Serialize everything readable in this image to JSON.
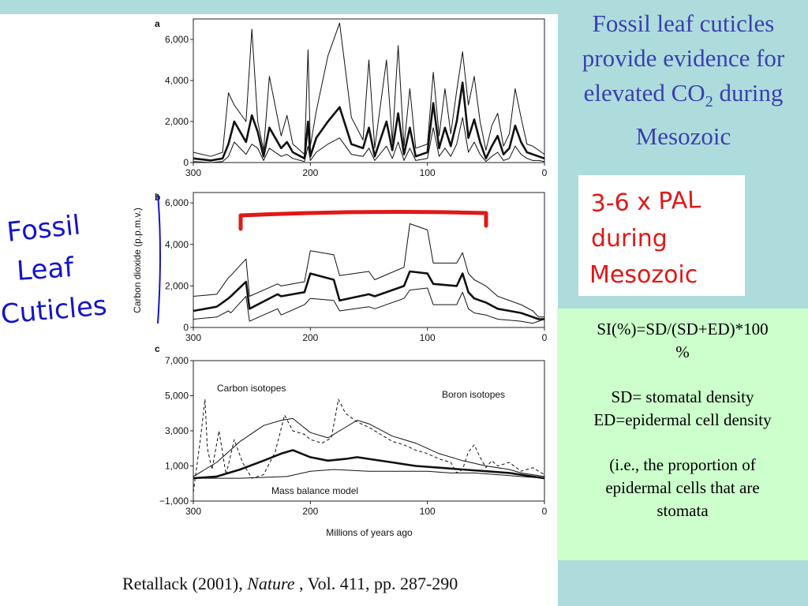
{
  "slide": {
    "title_line1": "Fossil leaf cuticles",
    "title_line2": "provide evidence for",
    "title_line3_pre": "elevated CO",
    "title_line3_sub": "2",
    "title_line3_post": " during",
    "title_line4": "Mesozoic",
    "handwritten_left": [
      "Fossil",
      "Leaf",
      "Cuticles"
    ],
    "handwritten_note": [
      "3-6 x PAL",
      "during",
      "Mesozoic"
    ],
    "si_box": {
      "formula": "SI(%)=SD/(SD+ED)*100",
      "percent": "%",
      "sd_def": "SD= stomatal density",
      "ed_def": "ED=epidermal cell density",
      "expl_1": "(i.e., the proportion of",
      "expl_2": "epidermal cells that are",
      "expl_3": "stomata"
    },
    "citation_pre": "Retallack (2001), ",
    "citation_journal": "Nature",
    "citation_post": " , Vol. 411, pp. 287-290",
    "colors": {
      "title": "#3a3fb0",
      "handwriting_blue": "#1515c8",
      "handwriting_red": "#e01818",
      "si_bg": "#ccffcc",
      "slide_bg": "#aedcdc"
    }
  },
  "chart_data": [
    {
      "panel": "a",
      "type": "line",
      "ylabel": "",
      "yticks": [
        "0",
        "2,000",
        "4,000",
        "6,000"
      ],
      "xticks": [
        "300",
        "200",
        "100",
        "0"
      ],
      "xlim": [
        300,
        0
      ],
      "ylim": [
        0,
        7000
      ],
      "series": [
        {
          "role": "mean",
          "x": [
            300,
            285,
            275,
            270,
            265,
            255,
            250,
            245,
            240,
            235,
            225,
            220,
            215,
            205,
            202,
            200,
            195,
            185,
            175,
            165,
            155,
            150,
            145,
            135,
            130,
            125,
            120,
            115,
            110,
            100,
            95,
            90,
            85,
            80,
            75,
            70,
            65,
            60,
            55,
            50,
            45,
            40,
            35,
            30,
            25,
            20,
            15,
            10,
            5,
            0
          ],
          "y": [
            200,
            100,
            200,
            900,
            2000,
            1000,
            2300,
            1500,
            300,
            1700,
            700,
            1000,
            500,
            200,
            2000,
            300,
            1200,
            2000,
            2700,
            900,
            700,
            1700,
            300,
            2000,
            600,
            2400,
            400,
            1700,
            300,
            500,
            2900,
            700,
            1700,
            800,
            2000,
            3900,
            1200,
            2100,
            1000,
            200,
            800,
            1300,
            400,
            700,
            1800,
            1000,
            500,
            400,
            300,
            200
          ]
        },
        {
          "role": "upper",
          "x": [
            300,
            285,
            275,
            270,
            265,
            255,
            250,
            245,
            240,
            235,
            225,
            220,
            215,
            205,
            202,
            200,
            195,
            185,
            175,
            165,
            155,
            150,
            145,
            135,
            130,
            125,
            120,
            115,
            110,
            100,
            95,
            90,
            85,
            80,
            75,
            70,
            65,
            60,
            55,
            50,
            45,
            40,
            35,
            30,
            25,
            20,
            15,
            10,
            5,
            0
          ],
          "y": [
            500,
            300,
            500,
            3400,
            2800,
            2000,
            6500,
            2000,
            600,
            4200,
            1300,
            2300,
            900,
            400,
            5500,
            800,
            2500,
            5200,
            6800,
            2200,
            1100,
            5000,
            700,
            5000,
            1000,
            5700,
            800,
            3600,
            700,
            900,
            4400,
            1300,
            3600,
            1400,
            3500,
            5400,
            2800,
            4200,
            2000,
            600,
            1800,
            2400,
            800,
            1400,
            3600,
            2200,
            900,
            800,
            600,
            400
          ]
        },
        {
          "role": "lower",
          "x": [
            300,
            285,
            275,
            270,
            265,
            255,
            250,
            245,
            240,
            235,
            225,
            220,
            215,
            205,
            202,
            200,
            195,
            185,
            175,
            165,
            155,
            150,
            145,
            135,
            130,
            125,
            120,
            115,
            110,
            100,
            95,
            90,
            85,
            80,
            75,
            70,
            65,
            60,
            55,
            50,
            45,
            40,
            35,
            30,
            25,
            20,
            15,
            10,
            5,
            0
          ],
          "y": [
            50,
            0,
            50,
            300,
            1000,
            400,
            900,
            700,
            100,
            700,
            300,
            400,
            200,
            50,
            800,
            100,
            500,
            900,
            1200,
            400,
            300,
            700,
            100,
            800,
            200,
            1000,
            100,
            700,
            100,
            200,
            1700,
            300,
            700,
            300,
            900,
            2200,
            500,
            1000,
            400,
            50,
            300,
            500,
            100,
            200,
            800,
            400,
            200,
            100,
            100,
            50
          ]
        }
      ]
    },
    {
      "panel": "b",
      "type": "line",
      "ylabel": "Carbon dioxide (p.p.m.v.)",
      "yticks": [
        "0",
        "2,000",
        "4,000",
        "6,000"
      ],
      "xticks": [
        "300",
        "200",
        "100",
        "0"
      ],
      "xlim": [
        300,
        0
      ],
      "ylim": [
        0,
        6500
      ],
      "series": [
        {
          "role": "mean",
          "x": [
            300,
            280,
            270,
            268,
            255,
            252,
            228,
            225,
            205,
            200,
            180,
            175,
            150,
            145,
            120,
            115,
            100,
            95,
            75,
            70,
            65,
            60,
            50,
            40,
            20,
            10,
            5,
            0
          ],
          "y": [
            800,
            1000,
            1400,
            1500,
            2200,
            900,
            1600,
            1500,
            1700,
            2600,
            2300,
            1300,
            1600,
            1500,
            2000,
            2700,
            2600,
            2100,
            2000,
            2600,
            1700,
            1400,
            1200,
            900,
            700,
            500,
            400,
            400
          ]
        },
        {
          "role": "upper",
          "x": [
            300,
            280,
            270,
            268,
            255,
            252,
            228,
            225,
            205,
            200,
            180,
            175,
            150,
            145,
            120,
            115,
            100,
            95,
            75,
            70,
            65,
            60,
            50,
            40,
            20,
            10,
            5,
            0
          ],
          "y": [
            1500,
            1600,
            2400,
            2500,
            3300,
            1500,
            2100,
            2000,
            2200,
            3700,
            3500,
            2500,
            2700,
            2300,
            2900,
            5000,
            4700,
            3100,
            3100,
            3600,
            2600,
            2300,
            2000,
            1500,
            1100,
            800,
            500,
            500
          ]
        },
        {
          "role": "lower",
          "x": [
            300,
            280,
            270,
            268,
            255,
            252,
            228,
            225,
            205,
            200,
            180,
            175,
            150,
            145,
            120,
            115,
            100,
            95,
            75,
            70,
            65,
            60,
            50,
            40,
            20,
            10,
            5,
            0
          ],
          "y": [
            400,
            500,
            800,
            700,
            1500,
            300,
            900,
            600,
            1100,
            1400,
            1300,
            800,
            1000,
            900,
            1400,
            1800,
            1900,
            1100,
            1100,
            1700,
            900,
            700,
            600,
            400,
            300,
            200,
            300,
            400
          ]
        }
      ]
    },
    {
      "panel": "c",
      "type": "line",
      "ylabel": "",
      "xlabel": "Millions of years ago",
      "yticks": [
        "−1,000",
        "1,000",
        "3,000",
        "5,000",
        "7,000"
      ],
      "xticks": [
        "300",
        "200",
        "100",
        "0"
      ],
      "xlim": [
        300,
        0
      ],
      "ylim": [
        -1000,
        7000
      ],
      "annotations": [
        "Carbon isotopes",
        "Boron isotopes",
        "Mass balance model"
      ],
      "series": [
        {
          "name": "Carbon isotopes",
          "role": "upper",
          "x": [
            300,
            280,
            260,
            240,
            225,
            215,
            200,
            185,
            170,
            160,
            150,
            130,
            110,
            90,
            70,
            50,
            30,
            20,
            10,
            0
          ],
          "y": [
            400,
            1200,
            2400,
            3300,
            3600,
            3700,
            2900,
            2600,
            3200,
            3600,
            3400,
            2700,
            2300,
            1700,
            1300,
            1000,
            800,
            600,
            500,
            400
          ]
        },
        {
          "name": "Carbon isotopes",
          "role": "mean",
          "x": [
            300,
            280,
            260,
            240,
            225,
            215,
            200,
            185,
            170,
            160,
            150,
            130,
            110,
            90,
            70,
            50,
            30,
            20,
            10,
            0
          ],
          "y": [
            300,
            400,
            800,
            1300,
            1700,
            1900,
            1500,
            1300,
            1400,
            1500,
            1400,
            1200,
            1000,
            900,
            800,
            700,
            600,
            500,
            400,
            300
          ]
        },
        {
          "name": "Mass balance model",
          "x": [
            300,
            260,
            220,
            200,
            180,
            150,
            120,
            100,
            80,
            60,
            40,
            20,
            0
          ],
          "y": [
            300,
            300,
            400,
            700,
            800,
            700,
            700,
            700,
            600,
            600,
            500,
            400,
            300
          ]
        },
        {
          "name": "Boron isotopes",
          "style": "dashed",
          "x": [
            300,
            294,
            290,
            288,
            284,
            278,
            272,
            265,
            258,
            250,
            240,
            230,
            222,
            215,
            205,
            200,
            190,
            182,
            176,
            170,
            160,
            150,
            140,
            130,
            120,
            110,
            100,
            90,
            80,
            75,
            70,
            65,
            60,
            55,
            50,
            45,
            40,
            30,
            20,
            10,
            0
          ],
          "y": [
            -500,
            2500,
            4800,
            2000,
            800,
            3000,
            500,
            2500,
            1200,
            300,
            500,
            1800,
            3900,
            3000,
            2800,
            2500,
            2300,
            2600,
            4800,
            4000,
            3500,
            3200,
            2800,
            2400,
            2200,
            1900,
            1700,
            1400,
            1200,
            600,
            800,
            1800,
            2200,
            1500,
            900,
            1300,
            1000,
            1200,
            700,
            900,
            500
          ]
        }
      ]
    }
  ]
}
